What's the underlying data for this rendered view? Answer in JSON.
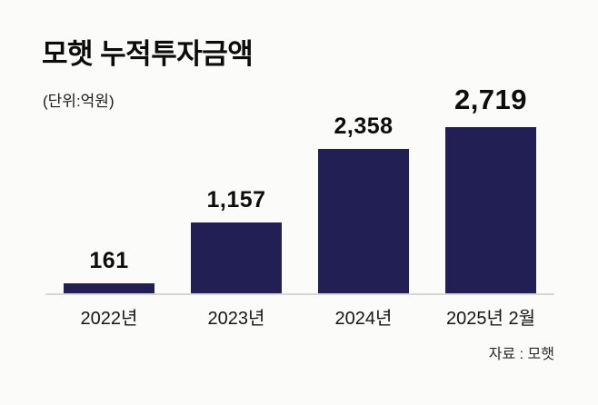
{
  "chart_data": {
    "type": "bar",
    "title": "모햇 누적투자금액",
    "unit_label": "(단위:억원)",
    "categories": [
      "2022년",
      "2023년",
      "2024년",
      "2025년 2월"
    ],
    "values": [
      161,
      1157,
      2358,
      2719
    ],
    "value_labels": [
      "161",
      "1,157",
      "2,358",
      "2,719"
    ],
    "source": "자료 : 모햇",
    "bar_color": "#211f54",
    "ylim": [
      0,
      2719
    ],
    "grid": "off",
    "legend": "none",
    "emphasized_category": "2025년 2월"
  }
}
